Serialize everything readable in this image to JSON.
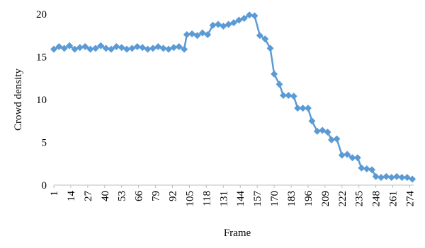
{
  "chart_data": {
    "type": "line",
    "x_label": "Frame",
    "y_label": "Crowd density",
    "x": [
      1,
      5,
      9,
      13,
      17,
      21,
      25,
      29,
      33,
      37,
      41,
      45,
      49,
      53,
      57,
      61,
      65,
      69,
      73,
      77,
      81,
      85,
      89,
      93,
      97,
      101,
      103,
      107,
      111,
      115,
      119,
      123,
      127,
      131,
      135,
      139,
      143,
      147,
      151,
      155,
      159,
      163,
      167,
      170,
      174,
      177,
      181,
      185,
      188,
      192,
      196,
      199,
      203,
      207,
      211,
      214,
      218,
      222,
      226,
      230,
      234,
      237,
      241,
      245,
      248,
      252,
      256,
      260,
      264,
      268,
      272,
      276
    ],
    "series": [
      {
        "name": "Crowd density",
        "color": "#5b9bd5",
        "values": [
          15.9,
          16.2,
          16.0,
          16.3,
          15.9,
          16.1,
          16.2,
          15.9,
          16.0,
          16.3,
          16.0,
          15.9,
          16.2,
          16.1,
          15.9,
          16.0,
          16.2,
          16.1,
          15.9,
          16.0,
          16.2,
          16.0,
          15.9,
          16.1,
          16.2,
          15.9,
          17.6,
          17.7,
          17.5,
          17.8,
          17.6,
          18.7,
          18.8,
          18.6,
          18.8,
          19.0,
          19.3,
          19.5,
          19.9,
          19.8,
          17.5,
          17.1,
          16.0,
          13.0,
          11.8,
          10.5,
          10.5,
          10.4,
          9.0,
          9.0,
          9.0,
          7.5,
          6.3,
          6.4,
          6.2,
          5.3,
          5.4,
          3.5,
          3.6,
          3.2,
          3.2,
          2.0,
          1.9,
          1.8,
          1.0,
          0.9,
          1.0,
          0.9,
          1.0,
          0.9,
          0.9,
          0.7
        ]
      }
    ],
    "xlim": [
      1,
      277
    ],
    "xticks": [
      1,
      14,
      27,
      40,
      53,
      66,
      79,
      92,
      105,
      118,
      131,
      144,
      157,
      170,
      183,
      196,
      209,
      222,
      235,
      248,
      261,
      274
    ],
    "ylim": [
      0,
      20
    ],
    "yticks": [
      0,
      5,
      10,
      15,
      20
    ]
  }
}
